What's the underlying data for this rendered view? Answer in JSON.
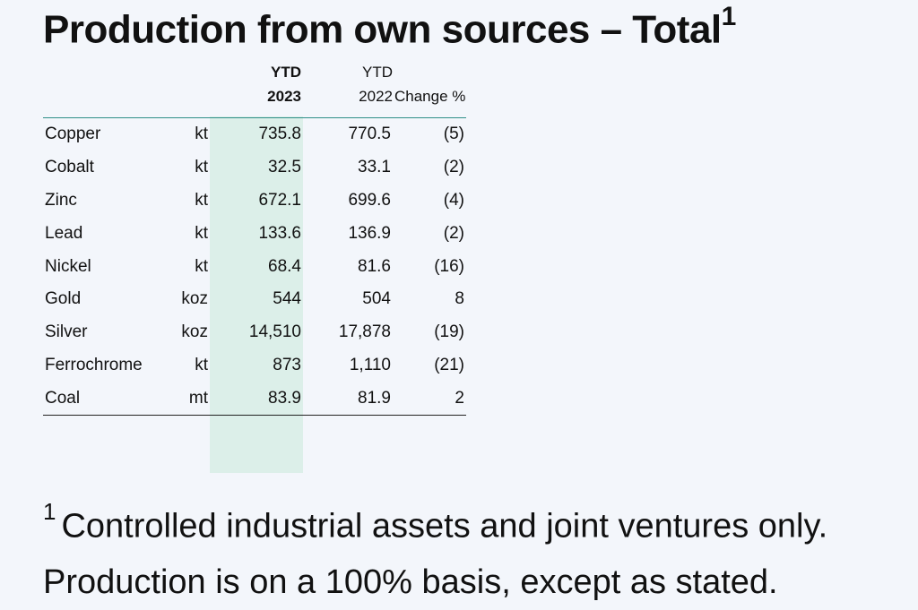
{
  "title": {
    "text": "Production from own sources – Total",
    "footnote_marker": "1"
  },
  "table": {
    "headers": {
      "ytd_2023_top": "YTD",
      "ytd_2023_bottom": "2023",
      "ytd_2022_top": "YTD",
      "ytd_2022_bottom": "2022",
      "change": "Change %"
    },
    "rows": [
      {
        "name": "Copper",
        "unit": "kt",
        "ytd_2023": "735.8",
        "ytd_2022": "770.5",
        "change": "(5)"
      },
      {
        "name": "Cobalt",
        "unit": "kt",
        "ytd_2023": "32.5",
        "ytd_2022": "33.1",
        "change": "(2)"
      },
      {
        "name": "Zinc",
        "unit": "kt",
        "ytd_2023": "672.1",
        "ytd_2022": "699.6",
        "change": "(4)"
      },
      {
        "name": "Lead",
        "unit": "kt",
        "ytd_2023": "133.6",
        "ytd_2022": "136.9",
        "change": "(2)"
      },
      {
        "name": "Nickel",
        "unit": "kt",
        "ytd_2023": "68.4",
        "ytd_2022": "81.6",
        "change": "(16)"
      },
      {
        "name": "Gold",
        "unit": "koz",
        "ytd_2023": "544",
        "ytd_2022": "504",
        "change": "8"
      },
      {
        "name": "Silver",
        "unit": "koz",
        "ytd_2023": "14,510",
        "ytd_2022": "17,878",
        "change": "(19)"
      },
      {
        "name": "Ferrochrome",
        "unit": "kt",
        "ytd_2023": "873",
        "ytd_2022": "1,110",
        "change": "(21)"
      },
      {
        "name": "Coal",
        "unit": "mt",
        "ytd_2023": "83.9",
        "ytd_2022": "81.9",
        "change": "2"
      }
    ]
  },
  "footnote": {
    "marker": "1",
    "line1": "Controlled industrial assets and joint ventures only.",
    "line2": "Production is on a 100% basis, except as stated."
  },
  "colors": {
    "background": "#f3f6fb",
    "highlight_column": "#dcefe9",
    "header_rule": "#2f8f87"
  }
}
